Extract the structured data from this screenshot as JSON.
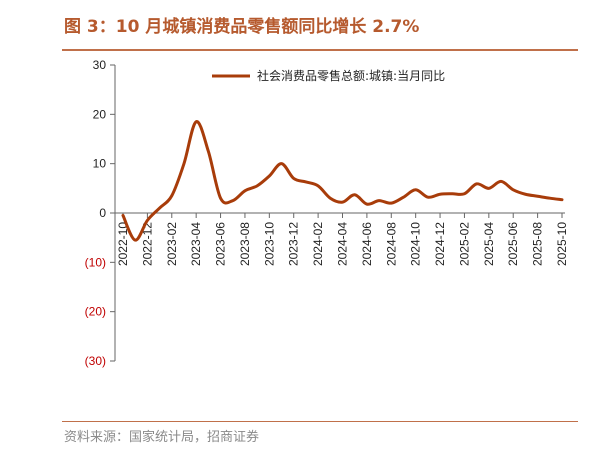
{
  "header": {
    "title": "图 3：10 月城镇消费品零售额同比增长 2.7%"
  },
  "footer": {
    "source": "资料来源：国家统计局，招商证券"
  },
  "colors": {
    "line": "#a83c0a",
    "title": "#b65a2e",
    "negative": "#c00000"
  },
  "chart_data": {
    "type": "line",
    "title": "",
    "xlabel": "",
    "ylabel": "",
    "ylim": [
      -30,
      30
    ],
    "y_ticks": [
      {
        "value": 30,
        "label": "30"
      },
      {
        "value": 20,
        "label": "20"
      },
      {
        "value": 10,
        "label": "10"
      },
      {
        "value": 0,
        "label": "0"
      },
      {
        "value": -10,
        "label": "(10)"
      },
      {
        "value": -20,
        "label": "(20)"
      },
      {
        "value": -30,
        "label": "(30)"
      }
    ],
    "x_tick_labels": [
      "2022-10",
      "2022-12",
      "2023-02",
      "2023-04",
      "2023-06",
      "2023-08",
      "2023-10",
      "2023-12",
      "2024-02",
      "2024-04",
      "2024-06",
      "2024-08",
      "2024-10",
      "2024-12",
      "2025-02",
      "2025-04",
      "2025-06",
      "2025-08",
      "2025-10"
    ],
    "legend": {
      "position": "top",
      "entries": [
        "社会消费品零售总额:城镇:当月同比"
      ]
    },
    "grid": false,
    "series": [
      {
        "name": "社会消费品零售总额:城镇:当月同比",
        "x": [
          "2022-10",
          "2022-11",
          "2022-12",
          "2023-01",
          "2023-02",
          "2023-03",
          "2023-04",
          "2023-05",
          "2023-06",
          "2023-07",
          "2023-08",
          "2023-09",
          "2023-10",
          "2023-11",
          "2023-12",
          "2024-01",
          "2024-02",
          "2024-03",
          "2024-04",
          "2024-05",
          "2024-06",
          "2024-07",
          "2024-08",
          "2024-09",
          "2024-10",
          "2024-11",
          "2024-12",
          "2025-01",
          "2025-02",
          "2025-03",
          "2025-04",
          "2025-05",
          "2025-06",
          "2025-07",
          "2025-08",
          "2025-09",
          "2025-10"
        ],
        "values": [
          -0.5,
          -5.5,
          -1.5,
          1.0,
          3.5,
          10.0,
          18.5,
          12.5,
          3.0,
          2.5,
          4.5,
          5.5,
          7.5,
          10.0,
          7.0,
          6.3,
          5.5,
          3.0,
          2.2,
          3.7,
          1.8,
          2.5,
          2.0,
          3.2,
          4.7,
          3.2,
          3.8,
          3.9,
          3.9,
          5.9,
          5.0,
          6.4,
          4.7,
          3.8,
          3.4,
          3.0,
          2.7
        ]
      }
    ]
  }
}
